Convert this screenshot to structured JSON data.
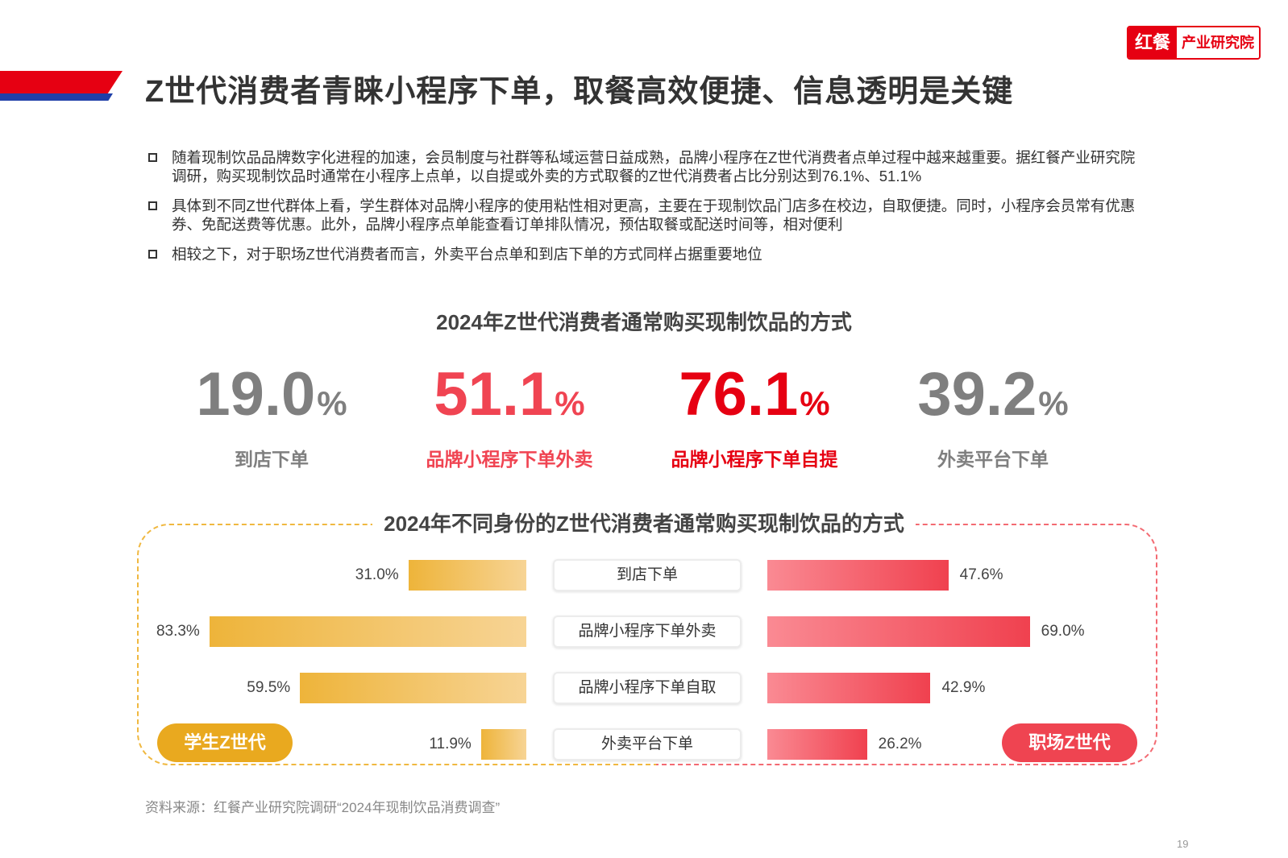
{
  "header": {
    "title": "Z世代消费者青睐小程序下单，取餐高效便捷、信息透明是关键",
    "logo_main": "红餐",
    "logo_sub": "产业研究院"
  },
  "bullets": [
    "随着现制饮品品牌数字化进程的加速，会员制度与社群等私域运营日益成熟，品牌小程序在Z世代消费者点单过程中越来越重要。据红餐产业研究院调研，购买现制饮品时通常在小程序上点单，以自提或外卖的方式取餐的Z世代消费者占比分别达到76.1%、51.1%",
    "具体到不同Z世代群体上看，学生群体对品牌小程序的使用粘性相对更高，主要在于现制饮品门店多在校边，自取便捷。同时，小程序会员常有优惠券、免配送费等优惠。此外，品牌小程序点单能查看订单排队情况，预估取餐或配送时间等，相对便利",
    "相较之下，对于职场Z世代消费者而言，外卖平台点单和到店下单的方式同样占据重要地位"
  ],
  "chart_data": [
    {
      "type": "table",
      "title": "2024年Z世代消费者通常购买现制饮品的方式",
      "categories": [
        "到店下单",
        "品牌小程序下单外卖",
        "品牌小程序下单自提",
        "外卖平台下单"
      ],
      "values": [
        19.0,
        51.1,
        76.1,
        39.2
      ],
      "value_labels": [
        "19.0",
        "51.1",
        "76.1",
        "39.2"
      ],
      "unit": "%",
      "colors": [
        "#7f7f7f",
        "#f04452",
        "#e60012",
        "#7f7f7f"
      ]
    },
    {
      "type": "bar",
      "title": "2024年不同身份的Z世代消费者通常购买现制饮品的方式",
      "categories": [
        "到店下单",
        "品牌小程序下单外卖",
        "品牌小程序下单自取",
        "外卖平台下单"
      ],
      "series": [
        {
          "name": "学生Z世代",
          "values": [
            31.0,
            83.3,
            59.5,
            11.9
          ],
          "labels": [
            "31.0%",
            "83.3%",
            "59.5%",
            "11.9%"
          ],
          "color": "#eeb43a"
        },
        {
          "name": "职场Z世代",
          "values": [
            47.6,
            69.0,
            42.9,
            26.2
          ],
          "labels": [
            "47.6%",
            "69.0%",
            "42.9%",
            "26.2%"
          ],
          "color": "#f0414f"
        }
      ]
    }
  ],
  "footer": {
    "source": "资料来源：红餐产业研究院调研“2024年现制饮品消费调查”",
    "page": "19"
  }
}
